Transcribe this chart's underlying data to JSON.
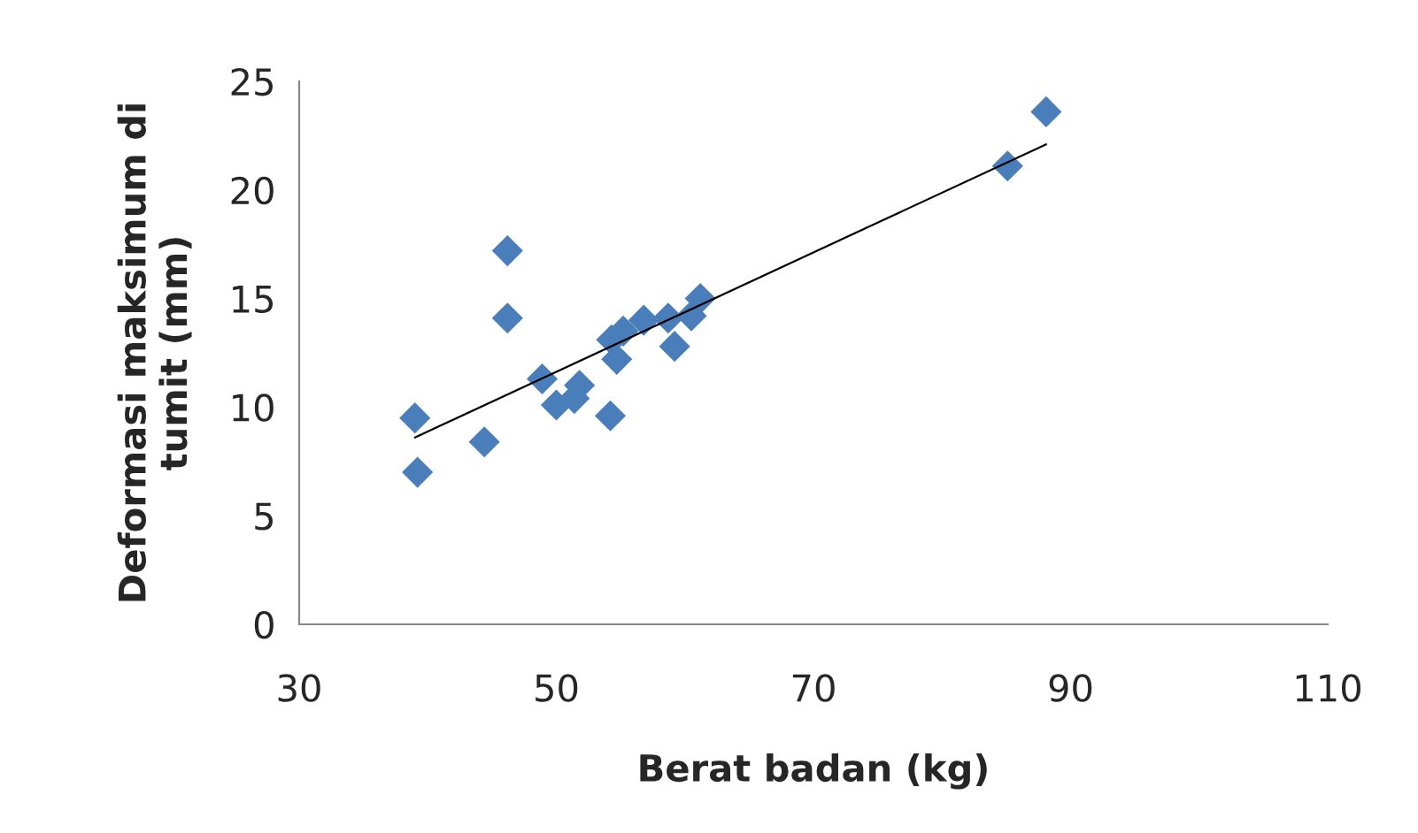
{
  "chart_data": {
    "type": "scatter",
    "xlabel": "Berat badan (kg)",
    "ylabel": "Deformasi maksimum di\ntumit (mm)",
    "xlim": [
      30,
      110
    ],
    "xticks": [
      30,
      50,
      70,
      90,
      110
    ],
    "ylim": [
      0,
      25
    ],
    "yticks": [
      0,
      5,
      10,
      15,
      20,
      25
    ],
    "grid": false,
    "series": [
      {
        "marker": "diamond",
        "color": "#4a7ebb",
        "x": [
          39.0,
          39.2,
          44.4,
          46.2,
          46.2,
          48.9,
          50.0,
          51.4,
          51.8,
          54.2,
          54.3,
          54.7,
          55.2,
          56.8,
          58.7,
          59.2,
          60.5,
          61.2,
          85.1,
          88.1
        ],
        "values": [
          9.5,
          7.0,
          8.4,
          17.2,
          14.1,
          11.3,
          10.1,
          10.4,
          11.0,
          9.6,
          13.1,
          12.2,
          13.5,
          14.0,
          14.1,
          12.8,
          14.2,
          15.0,
          21.1,
          23.6
        ]
      },
      {
        "type": "line",
        "marker": "none",
        "color": "#000000",
        "x": [
          39.0,
          88.1
        ],
        "values": [
          8.6,
          22.1
        ]
      }
    ]
  }
}
